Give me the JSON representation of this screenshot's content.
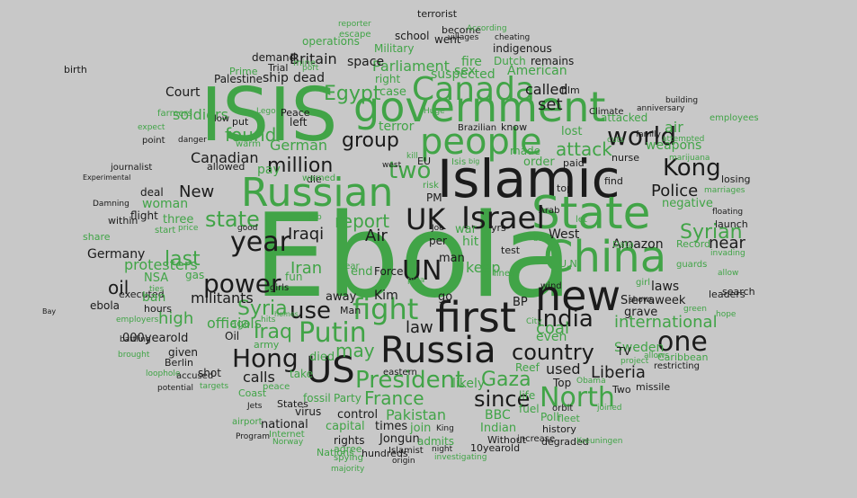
{
  "colors": {
    "background": "#c8c8c8",
    "green": "#41a447",
    "black": "#1b1b1b"
  },
  "words": [
    {
      "text": "Ebola",
      "color": "green"
    },
    {
      "text": "ISIS",
      "color": "green"
    },
    {
      "text": "Islamic",
      "color": "black"
    },
    {
      "text": "State",
      "color": "green"
    },
    {
      "text": "government",
      "color": "green"
    },
    {
      "text": "Russian",
      "color": "green"
    },
    {
      "text": "people",
      "color": "green"
    },
    {
      "text": "China",
      "color": "green"
    },
    {
      "text": "first",
      "color": "black"
    },
    {
      "text": "new",
      "color": "black"
    },
    {
      "text": "Russia",
      "color": "black"
    },
    {
      "text": "Canada",
      "color": "green"
    },
    {
      "text": "US",
      "color": "black"
    },
    {
      "text": "Israel",
      "color": "black"
    },
    {
      "text": "UK",
      "color": "black"
    },
    {
      "text": "UN",
      "color": "black"
    },
    {
      "text": "Hong",
      "color": "black"
    },
    {
      "text": "Kong",
      "color": "black"
    },
    {
      "text": "one",
      "color": "black"
    },
    {
      "text": "North",
      "color": "green"
    },
    {
      "text": "President",
      "color": "green"
    },
    {
      "text": "Putin",
      "color": "green"
    },
    {
      "text": "fight",
      "color": "green"
    },
    {
      "text": "India",
      "color": "black"
    },
    {
      "text": "world",
      "color": "black"
    },
    {
      "text": "year",
      "color": "black"
    },
    {
      "text": "power",
      "color": "black"
    },
    {
      "text": "million",
      "color": "black"
    },
    {
      "text": "group",
      "color": "black"
    },
    {
      "text": "two",
      "color": "green"
    },
    {
      "text": "country",
      "color": "black"
    },
    {
      "text": "since",
      "color": "black"
    },
    {
      "text": "Egypt",
      "color": "green"
    },
    {
      "text": "Syrian",
      "color": "green"
    },
    {
      "text": "last",
      "color": "green"
    },
    {
      "text": "use",
      "color": "black"
    },
    {
      "text": "state",
      "color": "green"
    },
    {
      "text": "Gaza",
      "color": "green"
    },
    {
      "text": "international",
      "color": "green"
    },
    {
      "text": "may",
      "color": "green"
    },
    {
      "text": "Iraq",
      "color": "green"
    },
    {
      "text": "Liberia",
      "color": "black"
    },
    {
      "text": "report",
      "color": "green"
    },
    {
      "text": "attack",
      "color": "green"
    },
    {
      "text": "Police",
      "color": "black"
    },
    {
      "text": "Syria",
      "color": "green"
    },
    {
      "text": "France",
      "color": "green"
    },
    {
      "text": "found",
      "color": "green"
    },
    {
      "text": "oil",
      "color": "black"
    },
    {
      "text": "near",
      "color": "black"
    },
    {
      "text": "protesters",
      "color": "green"
    },
    {
      "text": "Iraqi",
      "color": "black"
    },
    {
      "text": "Iran",
      "color": "green"
    },
    {
      "text": "militants",
      "color": "black"
    },
    {
      "text": "high",
      "color": "green"
    },
    {
      "text": "calls",
      "color": "black"
    },
    {
      "text": "used",
      "color": "black"
    },
    {
      "text": "law",
      "color": "black"
    },
    {
      "text": "called",
      "color": "black"
    },
    {
      "text": "Parliament",
      "color": "green"
    },
    {
      "text": "Britain",
      "color": "black"
    },
    {
      "text": "Court",
      "color": "black"
    },
    {
      "text": "German",
      "color": "green"
    },
    {
      "text": "Amazon",
      "color": "black"
    },
    {
      "text": "coal",
      "color": "green"
    },
    {
      "text": "air",
      "color": "green"
    },
    {
      "text": "set",
      "color": "black"
    },
    {
      "text": "New",
      "color": "black"
    },
    {
      "text": "soldiers",
      "color": "green"
    },
    {
      "text": "Canadian",
      "color": "black"
    },
    {
      "text": "officials",
      "color": "green"
    },
    {
      "text": "space",
      "color": "black"
    },
    {
      "text": "Germany",
      "color": "black"
    },
    {
      "text": "Air",
      "color": "black"
    },
    {
      "text": "West",
      "color": "black"
    },
    {
      "text": "Pakistan",
      "color": "green"
    },
    {
      "text": "BBC",
      "color": "green"
    },
    {
      "text": "Sweden",
      "color": "green"
    },
    {
      "text": "keep",
      "color": "green"
    },
    {
      "text": "hit",
      "color": "green"
    },
    {
      "text": "likely",
      "color": "green"
    },
    {
      "text": "American",
      "color": "green"
    },
    {
      "text": "fire",
      "color": "green"
    },
    {
      "text": "suspected",
      "color": "green"
    },
    {
      "text": "Dutch",
      "color": "green"
    },
    {
      "text": "Palestine",
      "color": "black"
    },
    {
      "text": "ship",
      "color": "black"
    },
    {
      "text": "dead",
      "color": "black"
    },
    {
      "text": "school",
      "color": "black"
    },
    {
      "text": "operations",
      "color": "green"
    },
    {
      "text": "remains",
      "color": "black"
    },
    {
      "text": "Military",
      "color": "green"
    },
    {
      "text": "weapons",
      "color": "green"
    },
    {
      "text": "laws",
      "color": "black"
    },
    {
      "text": "negative",
      "color": "green"
    },
    {
      "text": "woman",
      "color": "green"
    },
    {
      "text": "three",
      "color": "green"
    },
    {
      "text": "flight",
      "color": "black"
    },
    {
      "text": "deal",
      "color": "black"
    },
    {
      "text": "pay",
      "color": "green"
    },
    {
      "text": "man",
      "color": "black"
    },
    {
      "text": "per",
      "color": "black"
    },
    {
      "text": "war",
      "color": "green"
    },
    {
      "text": "yrs",
      "color": "black"
    },
    {
      "text": "PM",
      "color": "black"
    },
    {
      "text": "Kim",
      "color": "black"
    },
    {
      "text": "Force",
      "color": "black"
    },
    {
      "text": "away",
      "color": "black"
    },
    {
      "text": "go",
      "color": "black"
    },
    {
      "text": "BP",
      "color": "black"
    },
    {
      "text": "test",
      "color": "black"
    },
    {
      "text": "shot",
      "color": "black"
    },
    {
      "text": "given",
      "color": "black"
    },
    {
      "text": "Berlin",
      "color": "black"
    },
    {
      "text": "Oil",
      "color": "black"
    },
    {
      "text": "ago",
      "color": "green"
    },
    {
      "text": "army",
      "color": "green"
    },
    {
      "text": "000yearold",
      "color": "black"
    },
    {
      "text": "hours",
      "color": "black"
    },
    {
      "text": "executed",
      "color": "black"
    },
    {
      "text": "ban",
      "color": "green"
    },
    {
      "text": "NSA",
      "color": "green"
    },
    {
      "text": "gas",
      "color": "green"
    },
    {
      "text": "died",
      "color": "green"
    },
    {
      "text": "take",
      "color": "green"
    },
    {
      "text": "Party",
      "color": "green"
    },
    {
      "text": "fossil",
      "color": "green"
    },
    {
      "text": "capital",
      "color": "green"
    },
    {
      "text": "national",
      "color": "black"
    },
    {
      "text": "control",
      "color": "black"
    },
    {
      "text": "times",
      "color": "black"
    },
    {
      "text": "Jongun",
      "color": "black"
    },
    {
      "text": "join",
      "color": "green"
    },
    {
      "text": "admits",
      "color": "green"
    },
    {
      "text": "Indian",
      "color": "green"
    },
    {
      "text": "rights",
      "color": "black"
    },
    {
      "text": "virus",
      "color": "black"
    },
    {
      "text": "States",
      "color": "black"
    },
    {
      "text": "Reef",
      "color": "green"
    },
    {
      "text": "life",
      "color": "green"
    },
    {
      "text": "fuel",
      "color": "green"
    },
    {
      "text": "Top",
      "color": "black"
    },
    {
      "text": "Poll",
      "color": "green"
    },
    {
      "text": "history",
      "color": "black"
    },
    {
      "text": "Without",
      "color": "black"
    },
    {
      "text": "10yearold",
      "color": "black"
    },
    {
      "text": "degraded",
      "color": "black"
    },
    {
      "text": "fleet",
      "color": "green"
    },
    {
      "text": "Two",
      "color": "black"
    },
    {
      "text": "missile",
      "color": "black"
    },
    {
      "text": "grave",
      "color": "black"
    },
    {
      "text": "Sierraweek",
      "color": "black"
    },
    {
      "text": "TV",
      "color": "black"
    },
    {
      "text": "even",
      "color": "green"
    },
    {
      "text": "Caribbean",
      "color": "green"
    },
    {
      "text": "restricting",
      "color": "black"
    },
    {
      "text": "leaders",
      "color": "black"
    },
    {
      "text": "search",
      "color": "black"
    },
    {
      "text": "launch",
      "color": "black"
    },
    {
      "text": "losing",
      "color": "black"
    },
    {
      "text": "nurse",
      "color": "black"
    },
    {
      "text": "paid",
      "color": "black"
    },
    {
      "text": "find",
      "color": "black"
    },
    {
      "text": "lost",
      "color": "green"
    },
    {
      "text": "order",
      "color": "green"
    },
    {
      "text": "made",
      "color": "green"
    },
    {
      "text": "know",
      "color": "black"
    },
    {
      "text": "Brazilian",
      "color": "black"
    },
    {
      "text": "attacked",
      "color": "green"
    },
    {
      "text": "film",
      "color": "black"
    },
    {
      "text": "terror",
      "color": "green"
    },
    {
      "text": "sex",
      "color": "green"
    },
    {
      "text": "right",
      "color": "green"
    },
    {
      "text": "case",
      "color": "green"
    },
    {
      "text": "went",
      "color": "black"
    },
    {
      "text": "become",
      "color": "black"
    },
    {
      "text": "villages",
      "color": "black"
    },
    {
      "text": "cheating",
      "color": "black"
    },
    {
      "text": "indigenous",
      "color": "black"
    },
    {
      "text": "escape",
      "color": "green"
    },
    {
      "text": "According",
      "color": "green"
    },
    {
      "text": "reporter",
      "color": "green"
    },
    {
      "text": "terrorist",
      "color": "black"
    },
    {
      "text": "demand",
      "color": "black"
    },
    {
      "text": "Trial",
      "color": "black"
    },
    {
      "text": "Prime",
      "color": "green"
    },
    {
      "text": "farmers",
      "color": "green"
    },
    {
      "text": "put",
      "color": "black"
    },
    {
      "text": "left",
      "color": "black"
    },
    {
      "text": "Peace",
      "color": "black"
    },
    {
      "text": "building",
      "color": "black"
    },
    {
      "text": "employees",
      "color": "green"
    },
    {
      "text": "anniversary",
      "color": "black"
    },
    {
      "text": "attempted",
      "color": "green"
    },
    {
      "text": "marijuana",
      "color": "green"
    },
    {
      "text": "floating",
      "color": "black"
    },
    {
      "text": "Record",
      "color": "green"
    },
    {
      "text": "Data",
      "color": "green"
    },
    {
      "text": "bans",
      "color": "green"
    },
    {
      "text": "journalist",
      "color": "black"
    },
    {
      "text": "within",
      "color": "black"
    },
    {
      "text": "share",
      "color": "green"
    },
    {
      "text": "birth",
      "color": "black"
    },
    {
      "text": "Bay",
      "color": "black"
    },
    {
      "text": "ebola",
      "color": "black"
    },
    {
      "text": "battling",
      "color": "black"
    },
    {
      "text": "brought",
      "color": "green"
    },
    {
      "text": "employers",
      "color": "green"
    },
    {
      "text": "Coast",
      "color": "green"
    },
    {
      "text": "airport",
      "color": "green"
    },
    {
      "text": "Program",
      "color": "black"
    },
    {
      "text": "Internet",
      "color": "green"
    },
    {
      "text": "Norway",
      "color": "green"
    },
    {
      "text": "Nations",
      "color": "green"
    },
    {
      "text": "agree",
      "color": "green"
    },
    {
      "text": "spying",
      "color": "green"
    },
    {
      "text": "majority",
      "color": "green"
    },
    {
      "text": "hundreds",
      "color": "black"
    },
    {
      "text": "Islamist",
      "color": "black"
    },
    {
      "text": "origin",
      "color": "black"
    },
    {
      "text": "investigating",
      "color": "green"
    },
    {
      "text": "night",
      "color": "black"
    },
    {
      "text": "King",
      "color": "black"
    },
    {
      "text": "eastern",
      "color": "black"
    },
    {
      "text": "Kreuningen",
      "color": "green"
    },
    {
      "text": "Obama",
      "color": "green"
    },
    {
      "text": "project",
      "color": "green"
    },
    {
      "text": "allows",
      "color": "green"
    },
    {
      "text": "hope",
      "color": "green"
    },
    {
      "text": "green",
      "color": "green"
    },
    {
      "text": "invading",
      "color": "green"
    },
    {
      "text": "marriages",
      "color": "green"
    },
    {
      "text": "U.N",
      "color": "green"
    },
    {
      "text": "lines",
      "color": "green"
    },
    {
      "text": "Man",
      "color": "black"
    },
    {
      "text": "Joe",
      "color": "black"
    },
    {
      "text": "Arab",
      "color": "black"
    },
    {
      "text": "EU",
      "color": "black"
    },
    {
      "text": "west",
      "color": "black"
    },
    {
      "text": "die",
      "color": "black"
    },
    {
      "text": "warned",
      "color": "green"
    },
    {
      "text": "risk",
      "color": "green"
    },
    {
      "text": "kill",
      "color": "green"
    },
    {
      "text": "Huge",
      "color": "green"
    },
    {
      "text": "cuts",
      "color": "green"
    },
    {
      "text": "Climate",
      "color": "black"
    },
    {
      "text": "family",
      "color": "black"
    },
    {
      "text": "danger",
      "color": "black"
    },
    {
      "text": "expect",
      "color": "green"
    },
    {
      "text": "point",
      "color": "black"
    },
    {
      "text": "low",
      "color": "black"
    },
    {
      "text": "allowed",
      "color": "black"
    },
    {
      "text": "warm",
      "color": "green"
    },
    {
      "text": "Damning",
      "color": "black"
    },
    {
      "text": "Experimental",
      "color": "black"
    },
    {
      "text": "good",
      "color": "black"
    },
    {
      "text": "girls",
      "color": "black"
    },
    {
      "text": "fun",
      "color": "green"
    },
    {
      "text": "clear",
      "color": "green"
    },
    {
      "text": "job",
      "color": "green"
    },
    {
      "text": "price",
      "color": "green"
    },
    {
      "text": "start",
      "color": "green"
    },
    {
      "text": "ties",
      "color": "green"
    },
    {
      "text": "loophole",
      "color": "green"
    },
    {
      "text": "potential",
      "color": "black"
    },
    {
      "text": "accused",
      "color": "black"
    },
    {
      "text": "targets",
      "color": "green"
    },
    {
      "text": "Jets",
      "color": "black"
    },
    {
      "text": "peace",
      "color": "green"
    },
    {
      "text": "hits",
      "color": "green"
    },
    {
      "text": "homes",
      "color": "green"
    },
    {
      "text": "mine",
      "color": "green"
    },
    {
      "text": "port",
      "color": "green"
    },
    {
      "text": "Lego",
      "color": "green"
    },
    {
      "text": "plea",
      "color": "green"
    },
    {
      "text": "City",
      "color": "green"
    },
    {
      "text": "wind",
      "color": "black"
    },
    {
      "text": "orbit",
      "color": "black"
    },
    {
      "text": "increase",
      "color": "black"
    },
    {
      "text": "joined",
      "color": "green"
    },
    {
      "text": "let",
      "color": "green"
    },
    {
      "text": "girl",
      "color": "green"
    },
    {
      "text": "shows",
      "color": "black"
    },
    {
      "text": "guards",
      "color": "green"
    },
    {
      "text": "allow",
      "color": "green"
    },
    {
      "text": "top",
      "color": "black"
    },
    {
      "text": "end",
      "color": "green"
    },
    {
      "text": "big",
      "color": "green"
    },
    {
      "text": "Isis",
      "color": "green"
    }
  ]
}
